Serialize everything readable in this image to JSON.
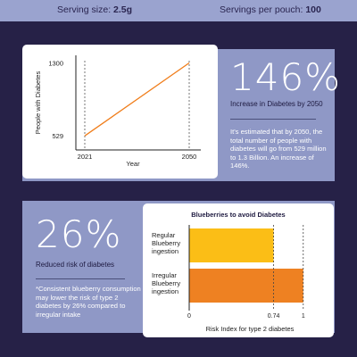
{
  "header": {
    "serving_label": "Serving size:",
    "serving_value": "2.5g",
    "servings_label": "Servings per pouch:",
    "servings_value": "100"
  },
  "section1": {
    "stat": "146%",
    "stat_caption": "Increase in Diabetes by 2050",
    "description": "It's estimated that by 2050, the total number of people with diabetes will go from 529 million to 1.3 Billion. An increase of 146%."
  },
  "section2": {
    "stat": "26%",
    "stat_caption": "Reduced risk of diabetes",
    "description": "*Consistent blueberry consumption may lower the risk of type 2 diabetes by 26% compared to irregular intake"
  },
  "colors": {
    "accent_line": "#f07d1a",
    "bar_regular": "#fbbe16",
    "bar_irregular": "#ee8122",
    "background": "#262147",
    "panel": "#8f98c6"
  },
  "chart_data": [
    {
      "type": "line",
      "title": "",
      "xlabel": "Year",
      "ylabel": "People with Diabetes",
      "x": [
        2021,
        2050
      ],
      "x_tick_labels": [
        "2021",
        "2050"
      ],
      "y_tick_labels": [
        "1300",
        "529"
      ],
      "series": [
        {
          "values": [
            529,
            1300
          ]
        }
      ],
      "ylim": [
        380,
        1380
      ],
      "grid": false
    },
    {
      "type": "bar",
      "orientation": "horizontal",
      "title": "Blueberries to avoid Diabetes",
      "xlabel": "Risk Index for type 2 diabetes",
      "categories": [
        "Regular Blueberry ingestion",
        "Irregular Blueberry ingestion"
      ],
      "category_lines": [
        [
          "Regular",
          "Blueberry",
          "ingestion"
        ],
        [
          "Irregular",
          "Blueberry",
          "ingestion"
        ]
      ],
      "values": [
        0.74,
        1
      ],
      "x_tick_labels": [
        "0",
        "0.74",
        "1"
      ],
      "x_ticks": [
        0,
        0.74,
        1
      ],
      "xlim": [
        0,
        1.08
      ]
    }
  ]
}
